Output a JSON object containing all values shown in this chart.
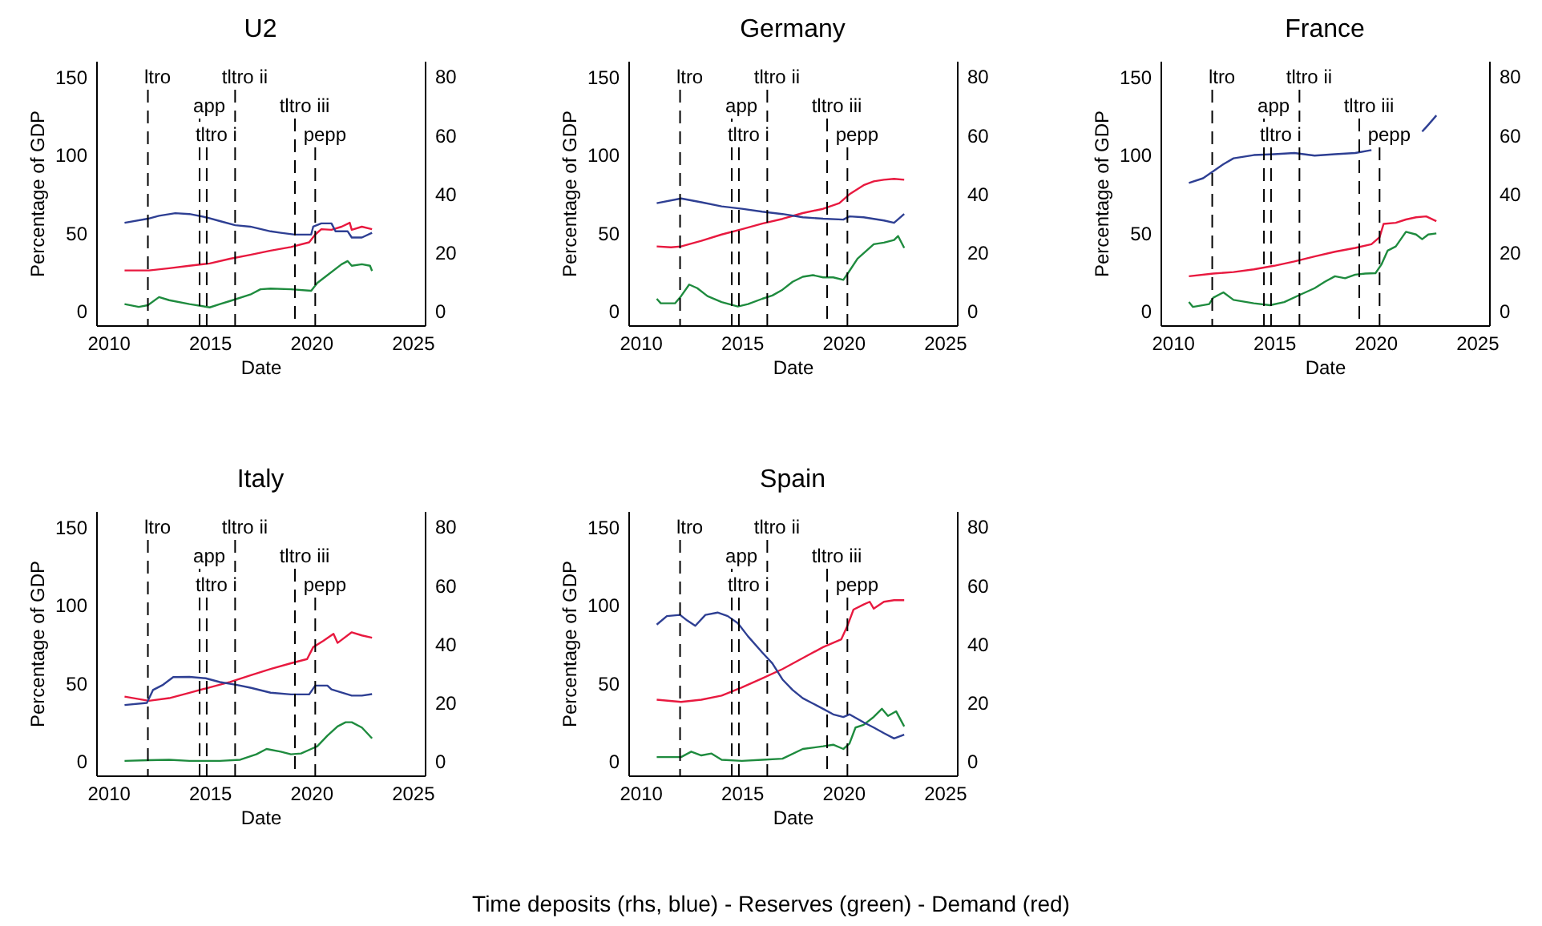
{
  "chart_data": [
    {
      "type": "line",
      "title": "U2",
      "xlabel": "Date",
      "ylabel": "Percentage of GDP",
      "xlim": [
        2009.4,
        2025.6
      ],
      "xticks": [
        2010,
        2015,
        2020,
        2025
      ],
      "ylim": [
        -9,
        160
      ],
      "yticks": [
        0,
        50,
        100,
        150
      ],
      "y2lim": [
        -4.8,
        85.3
      ],
      "y2ticks": [
        0,
        20,
        40,
        60,
        80
      ],
      "ref_lines": [
        {
          "axis": "x",
          "value": 2011.95,
          "label": "ltro",
          "color": "#000000",
          "line_style": "dashed"
        },
        {
          "axis": "x",
          "value": 2014.5,
          "label": "app",
          "color": "#000000",
          "line_style": "dashed"
        },
        {
          "axis": "x",
          "value": 2014.85,
          "label": "tltro i",
          "color": "#000000",
          "line_style": "dashed"
        },
        {
          "axis": "x",
          "value": 2016.25,
          "label": "tltro ii",
          "color": "#000000",
          "line_style": "dashed"
        },
        {
          "axis": "x",
          "value": 2019.2,
          "label": "tltro iii",
          "color": "#000000",
          "line_style": "dashed"
        },
        {
          "axis": "x",
          "value": 2020.2,
          "label": "pepp",
          "color": "#000000",
          "line_style": "dashed"
        }
      ],
      "series": [
        {
          "color": "#2e3f93",
          "axis": "y2",
          "x": [
            2010.8,
            2011.95,
            2012.5,
            2013.3,
            2014,
            2014.8,
            2015.5,
            2016.25,
            2017,
            2018,
            2018.5,
            2019.2,
            2020,
            2020.1,
            2020.5,
            2021,
            2021.2,
            2021.8,
            2022,
            2022.5,
            2023
          ],
          "values": [
            30.1,
            31.5,
            32.5,
            33.4,
            33.1,
            32,
            30.7,
            29.3,
            28.8,
            27.2,
            26.7,
            26.1,
            26.1,
            28.8,
            29.9,
            29.9,
            27.2,
            27.2,
            25.1,
            25.1,
            26.7
          ]
        },
        {
          "color": "#1e8b3e",
          "x": [
            2010.8,
            2011.5,
            2011.95,
            2012.5,
            2013,
            2014,
            2015,
            2015.5,
            2016,
            2017,
            2017.5,
            2018,
            2019,
            2020,
            2020.3,
            2020.8,
            2021.5,
            2021.8,
            2022,
            2022.5,
            2022.9,
            2023
          ],
          "values": [
            4.5,
            2.7,
            3.8,
            9,
            7,
            4.5,
            2.4,
            4.5,
            6.5,
            10.6,
            14,
            14.4,
            14,
            13,
            18,
            23,
            30,
            32,
            29,
            30,
            29,
            25.7
          ]
        },
        {
          "color": "#e8193f",
          "x": [
            2010.8,
            2012,
            2013,
            2014,
            2015,
            2016,
            2017,
            2018,
            2019,
            2019.9,
            2020.2,
            2020.5,
            2021,
            2021.5,
            2021.9,
            2022,
            2022.5,
            2023
          ],
          "values": [
            26,
            26,
            27.4,
            29,
            30.5,
            33.5,
            36,
            38.7,
            41,
            44,
            49,
            52.4,
            52,
            54,
            56.5,
            52,
            54,
            52.4
          ]
        }
      ]
    },
    {
      "type": "line",
      "title": "Germany",
      "xlabel": "Date",
      "ylabel": "Percentage of GDP",
      "xlim": [
        2009.4,
        2025.6
      ],
      "xticks": [
        2010,
        2015,
        2020,
        2025
      ],
      "ylim": [
        -9,
        160
      ],
      "yticks": [
        0,
        50,
        100,
        150
      ],
      "y2lim": [
        -4.8,
        85.3
      ],
      "y2ticks": [
        0,
        20,
        40,
        60,
        80
      ],
      "ref_lines": [
        {
          "axis": "x",
          "value": 2011.95,
          "label": "ltro",
          "color": "#000000",
          "line_style": "dashed"
        },
        {
          "axis": "x",
          "value": 2014.5,
          "label": "app",
          "color": "#000000",
          "line_style": "dashed"
        },
        {
          "axis": "x",
          "value": 2014.85,
          "label": "tltro i",
          "color": "#000000",
          "line_style": "dashed"
        },
        {
          "axis": "x",
          "value": 2016.25,
          "label": "tltro ii",
          "color": "#000000",
          "line_style": "dashed"
        },
        {
          "axis": "x",
          "value": 2019.2,
          "label": "tltro iii",
          "color": "#000000",
          "line_style": "dashed"
        },
        {
          "axis": "x",
          "value": 2020.2,
          "label": "pepp",
          "color": "#000000",
          "line_style": "dashed"
        }
      ],
      "series": [
        {
          "color": "#2e3f93",
          "axis": "y2",
          "x": [
            2010.8,
            2012,
            2013,
            2014,
            2015,
            2016,
            2017,
            2018,
            2019,
            2020,
            2020.3,
            2021,
            2022,
            2022.5,
            2023
          ],
          "values": [
            36.8,
            38.4,
            37.1,
            35.7,
            34.9,
            33.9,
            33.1,
            32,
            31.5,
            31.2,
            32.3,
            32,
            30.9,
            30.1,
            33.1
          ]
        },
        {
          "color": "#1e8b3e",
          "x": [
            2010.8,
            2011,
            2011.7,
            2012,
            2012.4,
            2012.8,
            2013.3,
            2014,
            2014.8,
            2015.3,
            2016,
            2016.5,
            2017,
            2017.5,
            2018,
            2018.5,
            2019,
            2019.5,
            2020,
            2020.3,
            2020.7,
            2021,
            2021.5,
            2022,
            2022.5,
            2022.7,
            2023
          ],
          "values": [
            7.9,
            5,
            5,
            9.6,
            17,
            14.7,
            9.6,
            5.8,
            3,
            4.5,
            7.9,
            10,
            13.7,
            18.8,
            22,
            23,
            21.6,
            21.6,
            20,
            25.7,
            33.6,
            37,
            42.8,
            43.8,
            45.5,
            48,
            40.4
          ]
        },
        {
          "color": "#e8193f",
          "x": [
            2010.8,
            2011.5,
            2012,
            2013,
            2014,
            2015,
            2016,
            2017,
            2018,
            2019,
            2019.8,
            2020.3,
            2021,
            2021.5,
            2022,
            2022.5,
            2023
          ],
          "values": [
            41.4,
            40.8,
            41.4,
            45,
            49,
            52.4,
            56,
            59,
            62.7,
            65.4,
            69,
            74.7,
            80.5,
            83,
            84,
            84.6,
            84
          ]
        }
      ]
    },
    {
      "type": "line",
      "title": "France",
      "xlabel": "Date",
      "ylabel": "Percentage of GDP",
      "xlim": [
        2009.4,
        2025.6
      ],
      "xticks": [
        2010,
        2015,
        2020,
        2025
      ],
      "ylim": [
        -9,
        160
      ],
      "yticks": [
        0,
        50,
        100,
        150
      ],
      "y2lim": [
        -4.8,
        85.3
      ],
      "y2ticks": [
        0,
        20,
        40,
        60,
        80
      ],
      "ref_lines": [
        {
          "axis": "x",
          "value": 2011.95,
          "label": "ltro",
          "color": "#000000",
          "line_style": "dashed"
        },
        {
          "axis": "x",
          "value": 2014.5,
          "label": "app",
          "color": "#000000",
          "line_style": "dashed"
        },
        {
          "axis": "x",
          "value": 2014.85,
          "label": "tltro i",
          "color": "#000000",
          "line_style": "dashed"
        },
        {
          "axis": "x",
          "value": 2016.25,
          "label": "tltro ii",
          "color": "#000000",
          "line_style": "dashed"
        },
        {
          "axis": "x",
          "value": 2019.2,
          "label": "tltro iii",
          "color": "#000000",
          "line_style": "dashed"
        },
        {
          "axis": "x",
          "value": 2020.2,
          "label": "pepp",
          "color": "#000000",
          "line_style": "dashed"
        }
      ],
      "series": [
        {
          "color": "#2e3f93",
          "axis": "y2",
          "x": [
            2010.8,
            2011.5,
            2012,
            2012.5,
            2013,
            2014,
            2015,
            2016,
            2017,
            2018,
            2019,
            2019.8
          ],
          "values": [
            43.7,
            45.3,
            47.7,
            50.1,
            52.1,
            53.2,
            53.5,
            53.9,
            53,
            53.5,
            53.9,
            54.9
          ]
        },
        {
          "color": "#2e3f93",
          "axis": "y2",
          "x": [
            2022.3,
            2022.6,
            2023
          ],
          "values": [
            61.2,
            63.5,
            66.7
          ]
        },
        {
          "color": "#1e8b3e",
          "x": [
            2010.8,
            2011,
            2011.8,
            2012,
            2012.5,
            2013,
            2014,
            2014.8,
            2015.5,
            2016.3,
            2017,
            2017.5,
            2018,
            2018.5,
            2019,
            2019.5,
            2020,
            2020.3,
            2020.6,
            2021,
            2021.5,
            2022,
            2022.3,
            2022.6,
            2023
          ],
          "values": [
            5.8,
            2.7,
            4.5,
            8.6,
            12,
            7.2,
            5,
            3.8,
            5.8,
            10.6,
            14.7,
            18.8,
            22.3,
            21,
            23.3,
            24,
            24.3,
            30,
            38.7,
            41.4,
            50.7,
            49,
            46,
            49,
            49.7
          ]
        },
        {
          "color": "#e8193f",
          "x": [
            2010.8,
            2012,
            2013,
            2014,
            2015,
            2016,
            2017,
            2018,
            2019,
            2019.8,
            2020.2,
            2020.4,
            2021,
            2021.5,
            2022,
            2022.5,
            2023
          ],
          "values": [
            22.3,
            24,
            25,
            26.7,
            29,
            31.8,
            35,
            38,
            40.4,
            42.8,
            47.3,
            55.8,
            56.5,
            58.6,
            60,
            60.6,
            57.5
          ]
        }
      ]
    },
    {
      "type": "line",
      "title": "Italy",
      "xlabel": "Date",
      "ylabel": "Percentage of GDP",
      "xlim": [
        2009.4,
        2025.6
      ],
      "xticks": [
        2010,
        2015,
        2020,
        2025
      ],
      "ylim": [
        -9,
        160
      ],
      "yticks": [
        0,
        50,
        100,
        150
      ],
      "y2lim": [
        -4.8,
        85.3
      ],
      "y2ticks": [
        0,
        20,
        40,
        60,
        80
      ],
      "ref_lines": [
        {
          "axis": "x",
          "value": 2011.95,
          "label": "ltro",
          "color": "#000000",
          "line_style": "dashed"
        },
        {
          "axis": "x",
          "value": 2014.5,
          "label": "app",
          "color": "#000000",
          "line_style": "dashed"
        },
        {
          "axis": "x",
          "value": 2014.85,
          "label": "tltro i",
          "color": "#000000",
          "line_style": "dashed"
        },
        {
          "axis": "x",
          "value": 2016.25,
          "label": "tltro ii",
          "color": "#000000",
          "line_style": "dashed"
        },
        {
          "axis": "x",
          "value": 2019.2,
          "label": "tltro iii",
          "color": "#000000",
          "line_style": "dashed"
        },
        {
          "axis": "x",
          "value": 2020.2,
          "label": "pepp",
          "color": "#000000",
          "line_style": "dashed"
        }
      ],
      "series": [
        {
          "color": "#2e3f93",
          "axis": "y2",
          "x": [
            2010.8,
            2011.9,
            2012.2,
            2012.7,
            2013.2,
            2014,
            2014.8,
            2015.5,
            2016.3,
            2017,
            2018,
            2019,
            2019.9,
            2020.2,
            2020.8,
            2021,
            2022,
            2022.5,
            2023
          ],
          "values": [
            19.2,
            19.9,
            24.3,
            26.1,
            28.7,
            28.8,
            28.3,
            27,
            26.1,
            25.1,
            23.4,
            22.8,
            22.8,
            25.8,
            25.8,
            24.5,
            22.4,
            22.4,
            22.9
          ]
        },
        {
          "color": "#1e8b3e",
          "x": [
            2010.8,
            2012,
            2013,
            2014,
            2015.5,
            2016.5,
            2017.3,
            2017.8,
            2018.5,
            2019,
            2019.5,
            2020,
            2020.3,
            2020.8,
            2021.3,
            2021.7,
            2022,
            2022.5,
            2023
          ],
          "values": [
            0.3,
            0.7,
            1,
            0.3,
            0.3,
            1,
            4.5,
            7.9,
            6.2,
            4.5,
            5,
            7.9,
            9.6,
            16.4,
            22.3,
            25,
            25,
            21.6,
            14.7
          ]
        },
        {
          "color": "#e8193f",
          "x": [
            2010.8,
            2012,
            2013,
            2014,
            2015,
            2016,
            2017,
            2018,
            2019,
            2019.8,
            2020.1,
            2020.6,
            2021.1,
            2021.3,
            2022,
            2022.5,
            2023
          ],
          "values": [
            41.4,
            38.7,
            40.4,
            43.8,
            47.3,
            50.7,
            55,
            59,
            62.7,
            65.4,
            73,
            77,
            81.5,
            75.7,
            82.5,
            80.5,
            79
          ]
        }
      ]
    },
    {
      "type": "line",
      "title": "Spain",
      "xlabel": "Date",
      "ylabel": "Percentage of GDP",
      "xlim": [
        2009.4,
        2025.6
      ],
      "xticks": [
        2010,
        2015,
        2020,
        2025
      ],
      "ylim": [
        -9,
        160
      ],
      "yticks": [
        0,
        50,
        100,
        150
      ],
      "y2lim": [
        -4.8,
        85.3
      ],
      "y2ticks": [
        0,
        20,
        40,
        60,
        80
      ],
      "annotations": [
        "Time deposits (rhs, blue)  -  Reserves (green)  -  Demand (red)"
      ],
      "ref_lines": [
        {
          "axis": "x",
          "value": 2011.95,
          "label": "ltro",
          "color": "#000000",
          "line_style": "dashed"
        },
        {
          "axis": "x",
          "value": 2014.5,
          "label": "app",
          "color": "#000000",
          "line_style": "dashed"
        },
        {
          "axis": "x",
          "value": 2014.85,
          "label": "tltro i",
          "color": "#000000",
          "line_style": "dashed"
        },
        {
          "axis": "x",
          "value": 2016.25,
          "label": "tltro ii",
          "color": "#000000",
          "line_style": "dashed"
        },
        {
          "axis": "x",
          "value": 2019.2,
          "label": "tltro iii",
          "color": "#000000",
          "line_style": "dashed"
        },
        {
          "axis": "x",
          "value": 2020.2,
          "label": "pepp",
          "color": "#000000",
          "line_style": "dashed"
        }
      ],
      "series": [
        {
          "color": "#2e3f93",
          "axis": "y2",
          "x": [
            2010.8,
            2011.3,
            2011.95,
            2012.3,
            2012.7,
            2013.2,
            2013.8,
            2014.3,
            2014.8,
            2015.3,
            2016,
            2016.5,
            2017,
            2017.5,
            2018,
            2018.5,
            2019,
            2019.5,
            2020,
            2020.3,
            2021,
            2021.5,
            2022,
            2022.5,
            2023
          ],
          "values": [
            46.6,
            49.5,
            49.9,
            48,
            46.2,
            49.9,
            50.7,
            49.5,
            47.1,
            42.6,
            37.1,
            33.4,
            27.9,
            24.3,
            21.5,
            19.7,
            17.9,
            16,
            15.1,
            16,
            13.3,
            11.5,
            9.6,
            7.8,
            9.1
          ]
        },
        {
          "color": "#1e8b3e",
          "x": [
            2010.8,
            2012,
            2012.5,
            2013,
            2013.5,
            2014,
            2015,
            2016,
            2017,
            2018,
            2019,
            2019.5,
            2020,
            2020.3,
            2020.6,
            2021,
            2021.5,
            2021.9,
            2022.2,
            2022.6,
            2023
          ],
          "values": [
            2.7,
            2.7,
            6.2,
            3.8,
            5,
            1,
            0.3,
            1,
            1.7,
            7.9,
            9.6,
            10.6,
            7.9,
            11.3,
            21.6,
            23.3,
            28.4,
            33.6,
            29,
            32,
            22.3
          ]
        },
        {
          "color": "#e8193f",
          "x": [
            2010.8,
            2012,
            2013,
            2014,
            2015,
            2016,
            2017,
            2018,
            2019,
            2019.9,
            2020.2,
            2020.5,
            2021,
            2021.3,
            2021.5,
            2022,
            2022.5,
            2023
          ],
          "values": [
            39.4,
            38,
            39.4,
            42,
            47.3,
            53,
            59,
            66,
            73,
            78,
            86.6,
            97,
            100.3,
            102,
            97.6,
            102,
            103,
            103
          ]
        }
      ]
    }
  ]
}
